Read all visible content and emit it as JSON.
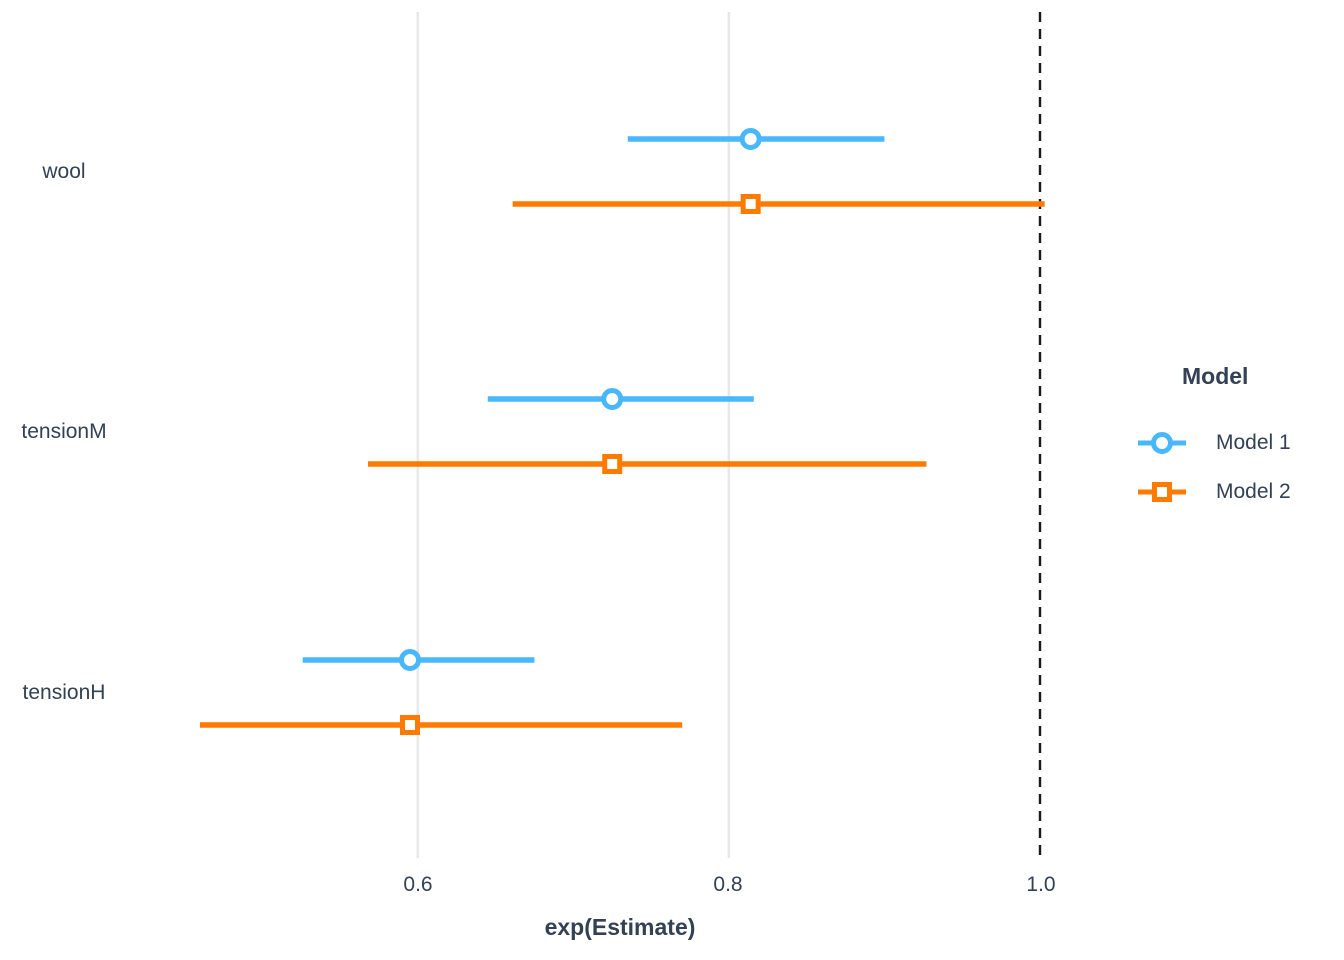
{
  "chart_data": {
    "type": "scatter",
    "variant": "forest-plot-with-horizontal-error-bars",
    "title": "",
    "xlabel": "exp(Estimate)",
    "ylabel": "",
    "xlim": [
      0.415,
      1.045
    ],
    "x_ticks": [
      0.6,
      0.8,
      1.0
    ],
    "x_tick_labels": [
      "0.6",
      "0.8",
      "1.0"
    ],
    "grid": "vertical-gridlines-only",
    "grid_color": "#E8E8E8",
    "text_color": "#334155",
    "background_color": "#FFFFFF",
    "reference_line": {
      "x": 1.0,
      "style": "dashed",
      "color": "#1A1A1A"
    },
    "categories": [
      "wool",
      "tensionM",
      "tensionH"
    ],
    "legend": {
      "title": "Model",
      "position": "right",
      "entries": [
        "Model 1",
        "Model 2"
      ]
    },
    "series": [
      {
        "name": "Model 1",
        "marker": "circle",
        "color": "#49B7FC",
        "points": [
          {
            "term": "wool",
            "estimate": 0.814,
            "ci_low": 0.735,
            "ci_high": 0.9
          },
          {
            "term": "tensionM",
            "estimate": 0.725,
            "ci_low": 0.645,
            "ci_high": 0.816
          },
          {
            "term": "tensionH",
            "estimate": 0.595,
            "ci_low": 0.526,
            "ci_high": 0.675
          }
        ]
      },
      {
        "name": "Model 2",
        "marker": "square",
        "color": "#FF7B00",
        "points": [
          {
            "term": "wool",
            "estimate": 0.814,
            "ci_low": 0.661,
            "ci_high": 1.003
          },
          {
            "term": "tensionM",
            "estimate": 0.725,
            "ci_low": 0.568,
            "ci_high": 0.927
          },
          {
            "term": "tensionH",
            "estimate": 0.595,
            "ci_low": 0.46,
            "ci_high": 0.77
          }
        ]
      }
    ]
  }
}
